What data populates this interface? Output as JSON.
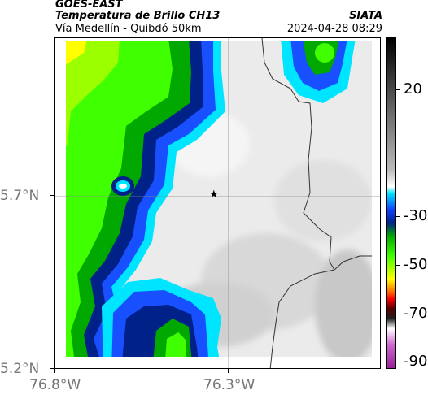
{
  "header": {
    "satellite": "GOES-EAST",
    "product": "Temperatura de Brillo CH13",
    "region": "Vía Medellín - Quibdó 50km",
    "agency": "SIATA",
    "datetime": "2024-04-28 08:29"
  },
  "axes": {
    "x_ticks": [
      "76.8°W",
      "76.3°W"
    ],
    "y_ticks": [
      "5.7°N",
      "5.2°N"
    ]
  },
  "marker": {
    "icon": "star-icon"
  },
  "colorbar": {
    "ticks": [
      "20",
      "-30",
      "-50",
      "-70",
      "-90"
    ],
    "gradient": [
      "#000000 0%",
      "#555555 18%",
      "#bbbbbb 40%",
      "#ffffff 45%",
      "#00e5ff 47%",
      "#1040ff 52%",
      "#002288 56%",
      "#00aa00 60%",
      "#40ff00 66%",
      "#ffff00 73%",
      "#ff6600 77%",
      "#ff0000 79%",
      "#550000 82%",
      "#222222 85%",
      "#ffffff 88%",
      "#cc66cc 93%",
      "#992299 100%"
    ]
  }
}
